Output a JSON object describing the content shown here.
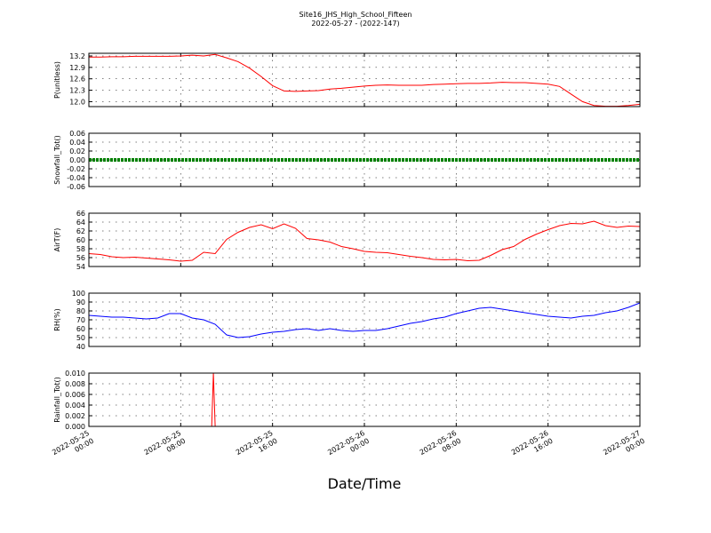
{
  "title": "Site16_JHS_High_School_Fifteen",
  "subtitle": "2022-05-27 - (2022-147)",
  "chart_data": {
    "type": "line",
    "title": "Site16_JHS_High_School_Fifteen",
    "subtitle": "2022-05-27 - (2022-147)",
    "xlabel": "Date/Time",
    "x_range": [
      "2022-05-25 00:00",
      "2022-05-27 00:00"
    ],
    "x_ticks": [
      {
        "l1": "2022-05-25",
        "l2": "00:00"
      },
      {
        "l1": "2022-05-25",
        "l2": "08:00"
      },
      {
        "l1": "2022-05-25",
        "l2": "16:00"
      },
      {
        "l1": "2022-05-26",
        "l2": "00:00"
      },
      {
        "l1": "2022-05-26",
        "l2": "08:00"
      },
      {
        "l1": "2022-05-26",
        "l2": "16:00"
      },
      {
        "l1": "2022-05-27",
        "l2": "00:00"
      }
    ],
    "grid": true,
    "panels": [
      {
        "ylabel": "P(unitless)",
        "ylim": [
          11.87,
          13.27
        ],
        "yticks": [
          "12.0",
          "12.3",
          "12.6",
          "12.9",
          "13.2"
        ],
        "color": "#ff0000",
        "x": [
          0,
          1,
          2,
          3,
          4,
          5,
          6,
          7,
          8,
          9,
          10,
          11,
          12,
          13,
          14,
          15,
          16,
          17,
          18,
          19,
          20,
          21,
          22,
          23,
          24,
          25,
          26,
          27,
          28,
          29,
          30,
          31,
          32,
          33,
          34,
          35,
          36,
          37,
          38,
          39,
          40,
          41,
          42,
          43,
          44,
          45,
          46,
          47,
          48
        ],
        "y": [
          13.17,
          13.17,
          13.18,
          13.18,
          13.19,
          13.19,
          13.19,
          13.19,
          13.2,
          13.22,
          13.2,
          13.24,
          13.15,
          13.05,
          12.88,
          12.66,
          12.42,
          12.28,
          12.27,
          12.28,
          12.29,
          12.33,
          12.35,
          12.38,
          12.41,
          12.43,
          12.44,
          12.43,
          12.43,
          12.43,
          12.45,
          12.46,
          12.47,
          12.48,
          12.48,
          12.49,
          12.51,
          12.5,
          12.5,
          12.48,
          12.46,
          12.4,
          12.2,
          12.0,
          11.9,
          11.88,
          11.88,
          11.9,
          11.93
        ]
      },
      {
        "ylabel": "Snowfall_Tot()",
        "ylim": [
          -0.06,
          0.06
        ],
        "yticks": [
          "-0.06",
          "-0.04",
          "-0.02",
          "0.00",
          "0.02",
          "0.04",
          "0.06"
        ],
        "color": "#008000",
        "x": [
          0,
          48
        ],
        "y": [
          0.0,
          0.0
        ]
      },
      {
        "ylabel": "AirT(F)",
        "ylim": [
          54,
          66
        ],
        "yticks": [
          "54",
          "56",
          "58",
          "60",
          "62",
          "64",
          "66"
        ],
        "color": "#ff0000",
        "x": [
          0,
          1,
          2,
          3,
          4,
          5,
          6,
          7,
          8,
          9,
          10,
          11,
          12,
          13,
          14,
          15,
          16,
          17,
          18,
          19,
          20,
          21,
          22,
          23,
          24,
          25,
          26,
          27,
          28,
          29,
          30,
          31,
          32,
          33,
          34,
          35,
          36,
          37,
          38,
          39,
          40,
          41,
          42,
          43,
          44,
          45,
          46,
          47,
          48
        ],
        "y": [
          56.9,
          56.7,
          56.2,
          56.0,
          56.1,
          55.9,
          55.7,
          55.5,
          55.2,
          55.4,
          57.2,
          56.9,
          60.1,
          61.7,
          62.8,
          63.4,
          62.5,
          63.6,
          62.6,
          60.3,
          60.0,
          59.5,
          58.5,
          58.0,
          57.4,
          57.2,
          57.1,
          56.7,
          56.3,
          56.0,
          55.6,
          55.5,
          55.6,
          55.3,
          55.4,
          56.5,
          57.8,
          58.5,
          60.1,
          61.3,
          62.3,
          63.2,
          63.7,
          63.6,
          64.2,
          63.2,
          62.8,
          63.1,
          63.0
        ]
      },
      {
        "ylabel": "RH(%)",
        "ylim": [
          40,
          100
        ],
        "yticks": [
          "40",
          "50",
          "60",
          "70",
          "80",
          "90",
          "100"
        ],
        "color": "#0000ff",
        "x": [
          0,
          1,
          2,
          3,
          4,
          5,
          6,
          7,
          8,
          9,
          10,
          11,
          12,
          13,
          14,
          15,
          16,
          17,
          18,
          19,
          20,
          21,
          22,
          23,
          24,
          25,
          26,
          27,
          28,
          29,
          30,
          31,
          32,
          33,
          34,
          35,
          36,
          37,
          38,
          39,
          40,
          41,
          42,
          43,
          44,
          45,
          46,
          47,
          48
        ],
        "y": [
          75,
          74,
          73,
          73,
          72,
          71,
          72,
          77,
          77,
          72,
          70,
          65,
          53,
          50,
          51,
          54,
          56,
          57,
          59,
          60,
          58,
          60,
          58,
          57,
          58,
          58,
          60,
          63,
          66,
          68,
          71,
          73,
          77,
          80,
          83,
          84,
          82,
          80,
          78,
          76,
          74,
          73,
          72,
          74,
          75,
          78,
          80,
          84,
          89
        ]
      },
      {
        "ylabel": "Rainfall_Tot()",
        "ylim": [
          0.0,
          0.01
        ],
        "yticks": [
          "0.000",
          "0.002",
          "0.004",
          "0.006",
          "0.008",
          "0.010"
        ],
        "color": "#ff0000",
        "x": [
          0,
          10.7,
          10.85,
          11.0,
          48
        ],
        "y": [
          0.0,
          0.0,
          0.01,
          0.0,
          0.0
        ]
      }
    ]
  }
}
